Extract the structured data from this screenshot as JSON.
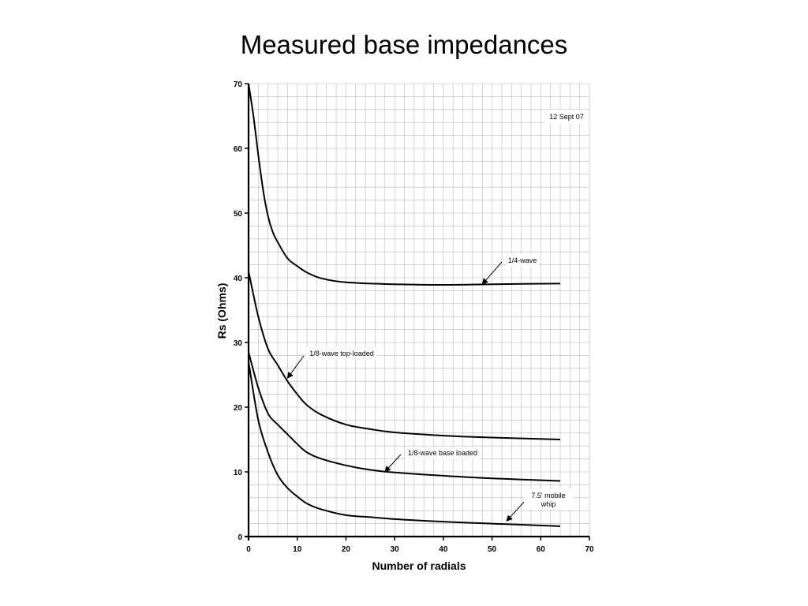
{
  "chart_data": {
    "type": "line",
    "title": "Measured base impedances",
    "xlabel": "Number of radials",
    "ylabel": "Rs (Ohms)",
    "xlim": [
      0,
      70
    ],
    "ylim": [
      0,
      70
    ],
    "x_ticks": [
      0,
      10,
      20,
      30,
      40,
      50,
      60,
      70
    ],
    "y_ticks": [
      0,
      10,
      20,
      30,
      40,
      50,
      60,
      70
    ],
    "grid": true,
    "legend": "none",
    "date_note": "12 Sept 07",
    "series": [
      {
        "name": "1/4-wave",
        "x": [
          0,
          1,
          2,
          3,
          4,
          5,
          6,
          8,
          10,
          12,
          15,
          20,
          30,
          40,
          50,
          64
        ],
        "values": [
          70,
          65,
          59,
          53.5,
          49.5,
          47,
          45.5,
          43,
          41.8,
          40.8,
          39.9,
          39.3,
          39.0,
          38.9,
          39.0,
          39.1
        ]
      },
      {
        "name": "1/8-wave top-loaded",
        "x": [
          0,
          2,
          4,
          6,
          8,
          10,
          12,
          15,
          20,
          25,
          30,
          40,
          50,
          64
        ],
        "values": [
          41,
          34,
          29,
          26.5,
          24,
          22,
          20.3,
          18.8,
          17.3,
          16.6,
          16.1,
          15.6,
          15.3,
          15.0
        ]
      },
      {
        "name": "1/8-wave base loaded",
        "x": [
          0,
          2,
          4,
          6,
          8,
          10,
          12,
          15,
          20,
          25,
          30,
          40,
          50,
          64
        ],
        "values": [
          28.5,
          23,
          19,
          17.3,
          15.8,
          14.3,
          13.0,
          12.0,
          11.0,
          10.3,
          9.9,
          9.4,
          9.0,
          8.6
        ]
      },
      {
        "name": "7.5' mobile whip",
        "x": [
          0,
          2,
          4,
          6,
          8,
          10,
          12,
          15,
          20,
          25,
          30,
          40,
          50,
          64
        ],
        "values": [
          27,
          18,
          13,
          9.5,
          7.5,
          6.2,
          5.1,
          4.2,
          3.3,
          3.0,
          2.7,
          2.3,
          2.0,
          1.6
        ]
      }
    ],
    "annotations": [
      {
        "text": "1/4-wave",
        "target": [
          48,
          39
        ]
      },
      {
        "text": "1/8-wave top-loaded",
        "target": [
          8,
          24.5
        ]
      },
      {
        "text": "1/8-wave base loaded",
        "target": [
          28,
          10
        ]
      },
      {
        "text": "7.5' mobile whip",
        "target": [
          53,
          2.4
        ]
      }
    ]
  }
}
